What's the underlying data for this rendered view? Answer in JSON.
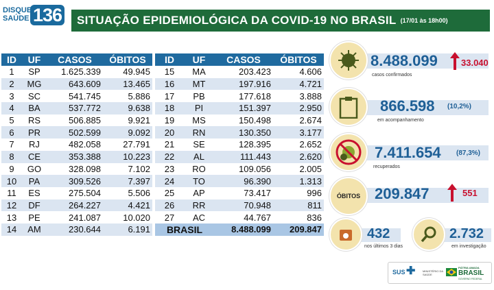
{
  "logo": {
    "disque": "DISQUE",
    "saude": "SAÚDE",
    "number": "136"
  },
  "header": {
    "title": "SITUAÇÃO EPIDEMIOLÓGICA DA COVID-19 NO BRASIL",
    "date": "(17/01 às 18h00)"
  },
  "table": {
    "columns": [
      "ID",
      "UF",
      "CASOS",
      "ÓBITOS"
    ],
    "left": [
      {
        "id": "1",
        "uf": "SP",
        "casos": "1.625.339",
        "obitos": "49.945"
      },
      {
        "id": "2",
        "uf": "MG",
        "casos": "643.609",
        "obitos": "13.465"
      },
      {
        "id": "3",
        "uf": "SC",
        "casos": "541.745",
        "obitos": "5.886"
      },
      {
        "id": "4",
        "uf": "BA",
        "casos": "537.772",
        "obitos": "9.638"
      },
      {
        "id": "5",
        "uf": "RS",
        "casos": "506.885",
        "obitos": "9.921"
      },
      {
        "id": "6",
        "uf": "PR",
        "casos": "502.599",
        "obitos": "9.092"
      },
      {
        "id": "7",
        "uf": "RJ",
        "casos": "482.058",
        "obitos": "27.791"
      },
      {
        "id": "8",
        "uf": "CE",
        "casos": "353.388",
        "obitos": "10.223"
      },
      {
        "id": "9",
        "uf": "GO",
        "casos": "328.098",
        "obitos": "7.102"
      },
      {
        "id": "10",
        "uf": "PA",
        "casos": "309.526",
        "obitos": "7.397"
      },
      {
        "id": "11",
        "uf": "ES",
        "casos": "275.504",
        "obitos": "5.506"
      },
      {
        "id": "12",
        "uf": "DF",
        "casos": "264.227",
        "obitos": "4.421"
      },
      {
        "id": "13",
        "uf": "PE",
        "casos": "241.087",
        "obitos": "10.020"
      },
      {
        "id": "14",
        "uf": "AM",
        "casos": "230.644",
        "obitos": "6.191"
      }
    ],
    "right": [
      {
        "id": "15",
        "uf": "MA",
        "casos": "203.423",
        "obitos": "4.606"
      },
      {
        "id": "16",
        "uf": "MT",
        "casos": "197.916",
        "obitos": "4.721"
      },
      {
        "id": "17",
        "uf": "PB",
        "casos": "177.618",
        "obitos": "3.888"
      },
      {
        "id": "18",
        "uf": "PI",
        "casos": "151.397",
        "obitos": "2.950"
      },
      {
        "id": "19",
        "uf": "MS",
        "casos": "150.498",
        "obitos": "2.674"
      },
      {
        "id": "20",
        "uf": "RN",
        "casos": "130.350",
        "obitos": "3.177"
      },
      {
        "id": "21",
        "uf": "SE",
        "casos": "128.395",
        "obitos": "2.652"
      },
      {
        "id": "22",
        "uf": "AL",
        "casos": "111.443",
        "obitos": "2.620"
      },
      {
        "id": "23",
        "uf": "RO",
        "casos": "109.056",
        "obitos": "2.005"
      },
      {
        "id": "24",
        "uf": "TO",
        "casos": "96.390",
        "obitos": "1.313"
      },
      {
        "id": "25",
        "uf": "AP",
        "casos": "73.417",
        "obitos": "996"
      },
      {
        "id": "26",
        "uf": "RR",
        "casos": "70.948",
        "obitos": "811"
      },
      {
        "id": "27",
        "uf": "AC",
        "casos": "44.767",
        "obitos": "836"
      }
    ],
    "total": {
      "label": "BRASIL",
      "casos": "8.488.099",
      "obitos": "209.847"
    }
  },
  "stats": {
    "confirmed": {
      "value": "8.488.099",
      "new": "33.040",
      "label": "casos confirmados",
      "icon": "virus-icon"
    },
    "following": {
      "value": "866.598",
      "pct": "(10,2%)",
      "label": "em acompanhamento",
      "icon": "clipboard-icon"
    },
    "recovered": {
      "value": "7.411.654",
      "pct": "(87,3%)",
      "label": "recuperados",
      "icon": "crossed-virus-icon"
    },
    "deaths": {
      "badge": "ÓBITOS",
      "value": "209.847",
      "new": "551"
    },
    "last3": {
      "value": "432",
      "label": "nos últimos 3 dias",
      "icon": "calendar-icon"
    },
    "investigation": {
      "value": "2.732",
      "label": "em investigação",
      "icon": "magnifier-icon"
    }
  },
  "footer": {
    "sus": "SUS",
    "ministry": "MINISTÉRIO DA SAÚDE",
    "patria": "PÁTRIA AMADA",
    "brasil": "BRASIL",
    "gov": "GOVERNO FEDERAL"
  },
  "colors": {
    "green": "#1e6b3a",
    "blue": "#1f6a9f",
    "red": "#c8102e",
    "beige": "#f3e3ad"
  }
}
